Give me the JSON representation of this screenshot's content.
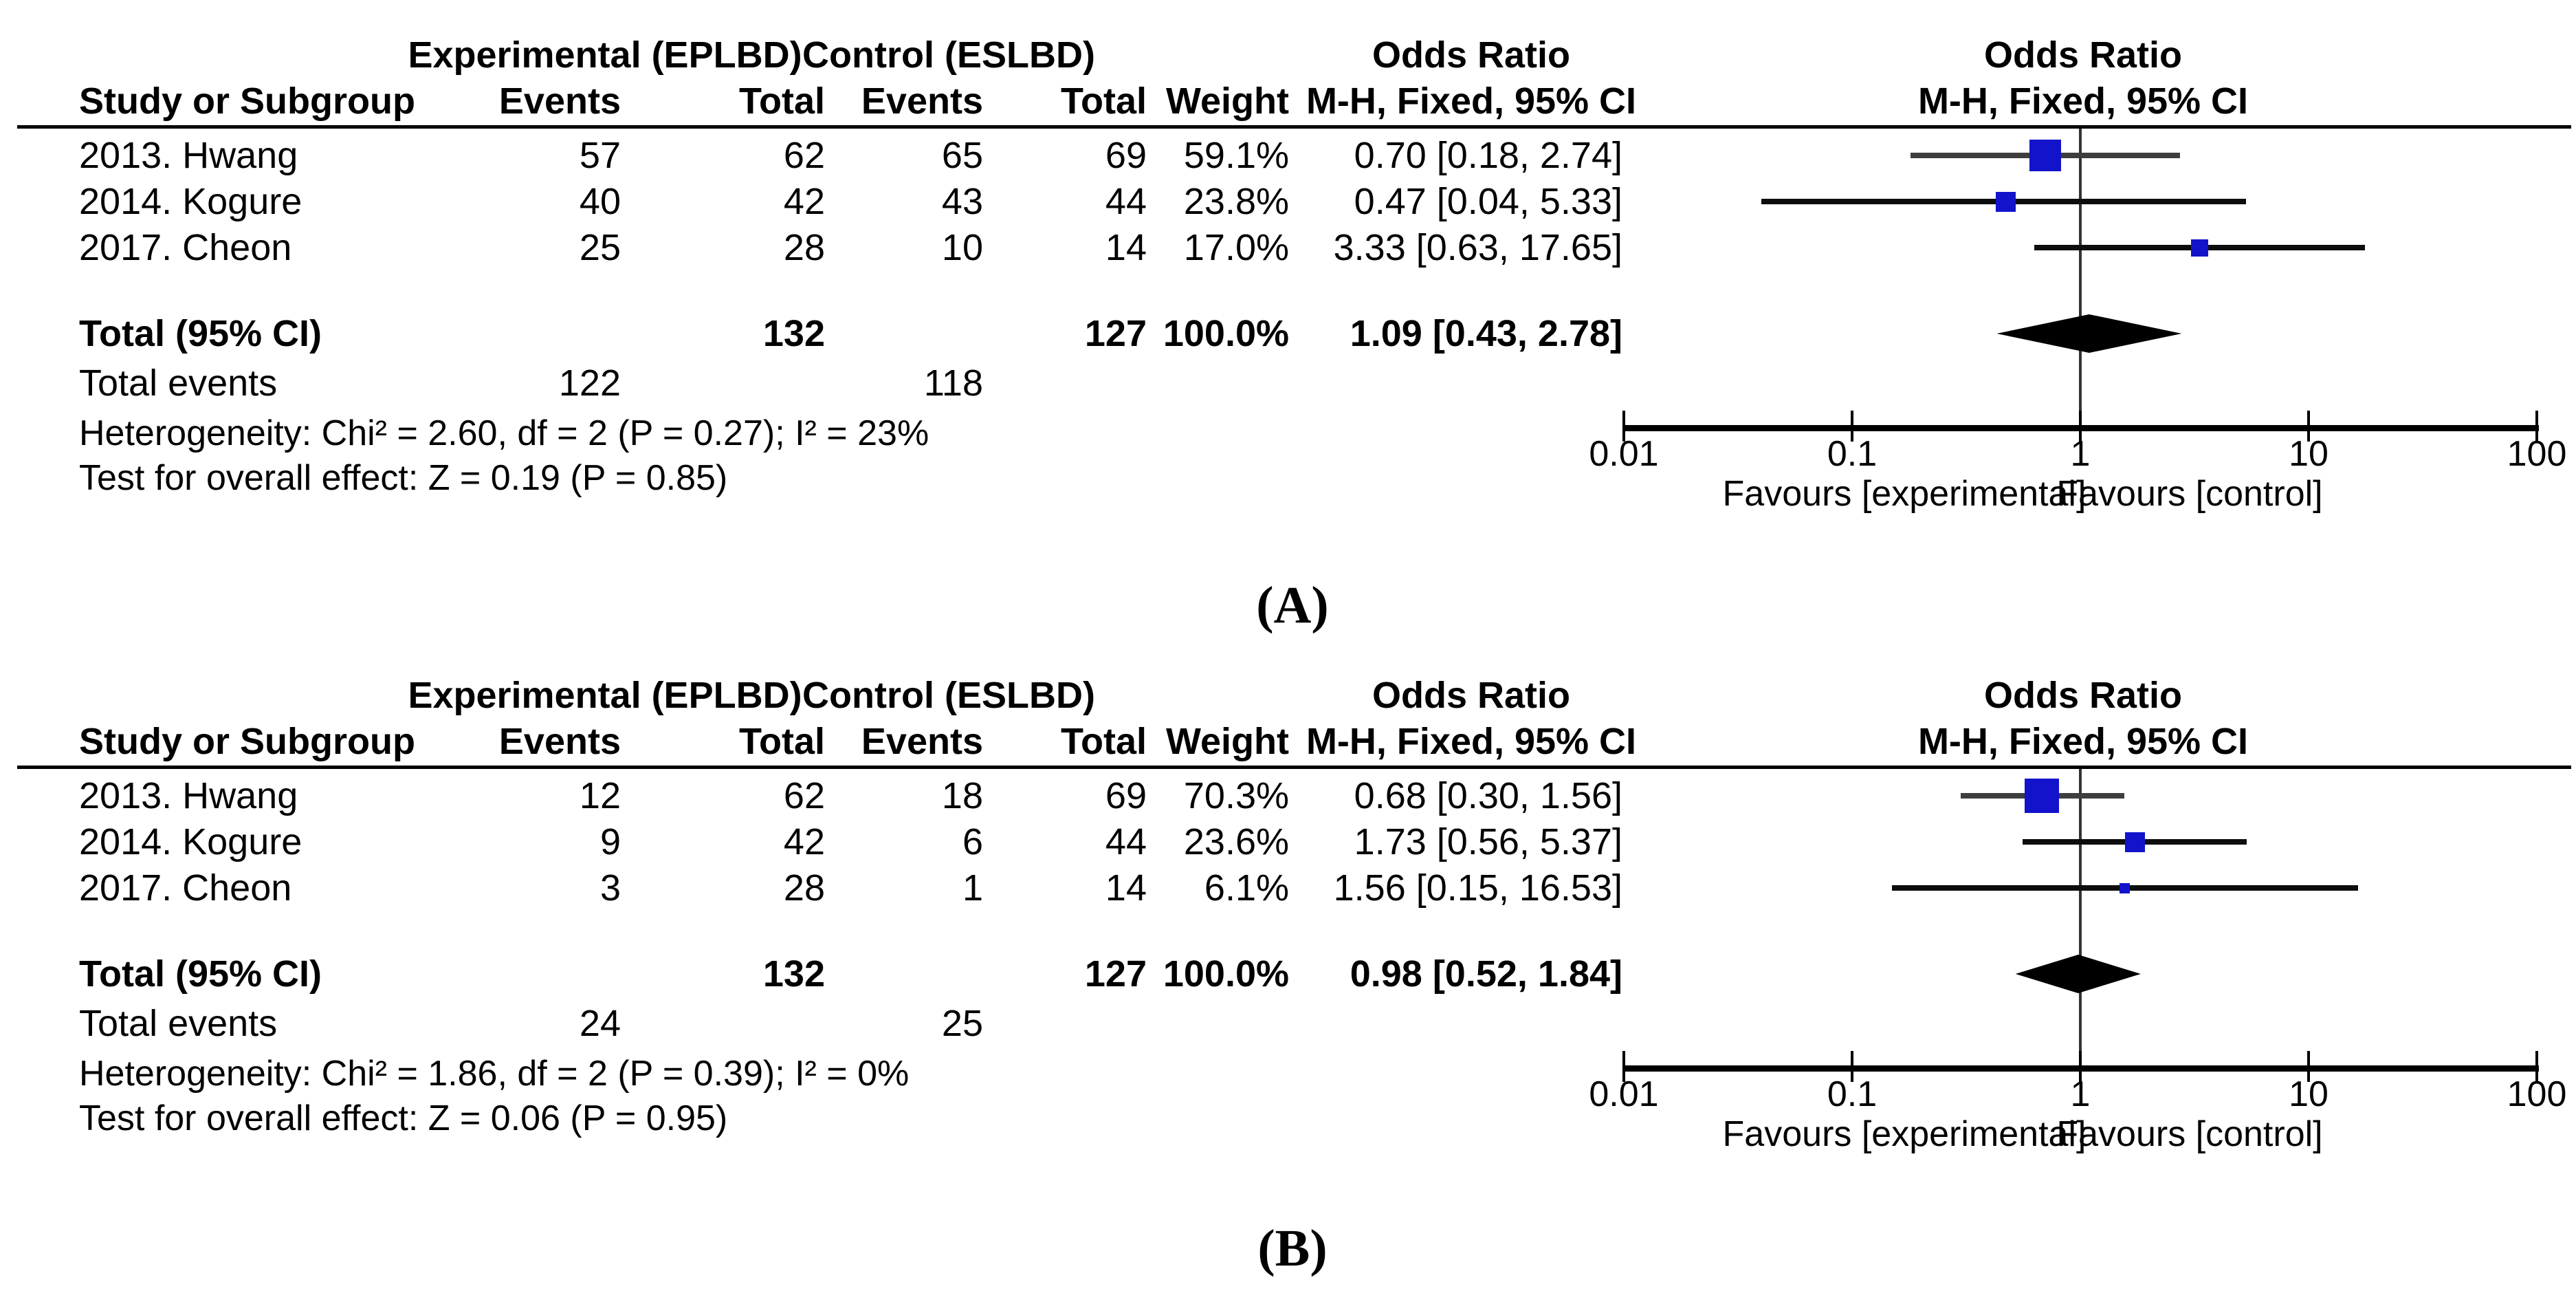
{
  "style": {
    "marker_color": "#1313cb",
    "diamond_color": "#000000",
    "axis_color": "#000000",
    "ci_default_color": "#0d0d0d"
  },
  "captions": {
    "a": "(A)",
    "b": "(B)"
  },
  "chart_data": [
    {
      "type": "forest",
      "panel_label": "(A)",
      "effect_measure": "Odds Ratio",
      "method": "M-H, Fixed, 95% CI",
      "col_headers": {
        "group_experimental": "Experimental (EPLBD)",
        "group_control": "Control (ESLBD)",
        "or_col_title": "Odds Ratio",
        "or_plot_title": "Odds Ratio",
        "study": "Study or Subgroup",
        "events": "Events",
        "total": "Total",
        "weight": "Weight",
        "method": "M-H, Fixed, 95% CI"
      },
      "studies": [
        {
          "name": "2013. Hwang",
          "exp_events": "57",
          "exp_total": "62",
          "ctrl_events": "65",
          "ctrl_total": "69",
          "weight": "59.1%",
          "weight_pct": 59.1,
          "or": 0.7,
          "ci_low": 0.18,
          "ci_high": 2.74,
          "or_text": "0.70 [0.18, 2.74]",
          "ci_color": "#3e3e3e"
        },
        {
          "name": "2014. Kogure",
          "exp_events": "40",
          "exp_total": "42",
          "ctrl_events": "43",
          "ctrl_total": "44",
          "weight": "23.8%",
          "weight_pct": 23.8,
          "or": 0.47,
          "ci_low": 0.04,
          "ci_high": 5.33,
          "or_text": "0.47 [0.04, 5.33]",
          "ci_color": "#0d0d0d"
        },
        {
          "name": "2017. Cheon",
          "exp_events": "25",
          "exp_total": "28",
          "ctrl_events": "10",
          "ctrl_total": "14",
          "weight": "17.0%",
          "weight_pct": 17.0,
          "or": 3.33,
          "ci_low": 0.63,
          "ci_high": 17.65,
          "or_text": "3.33 [0.63, 17.65]",
          "ci_color": "#0d0d0d"
        }
      ],
      "total": {
        "label": "Total (95% CI)",
        "exp_total": "132",
        "ctrl_total": "127",
        "weight": "100.0%",
        "or": 1.09,
        "ci_low": 0.43,
        "ci_high": 2.78,
        "or_text": "1.09 [0.43, 2.78]"
      },
      "total_events": {
        "label": "Total events",
        "exp": "122",
        "ctrl": "118"
      },
      "heterogeneity": "Heterogeneity: Chi² = 2.60, df = 2 (P = 0.27); I² = 23%",
      "overall_effect": "Test for overall effect: Z = 0.19 (P = 0.85)",
      "axis": {
        "scale": "log",
        "ticks": [
          0.01,
          0.1,
          1,
          10,
          100
        ],
        "tick_labels": [
          "0.01",
          "0.1",
          "1",
          "10",
          "100"
        ],
        "favours_left": "Favours [experimental]",
        "favours_right": "Favours [control]"
      }
    },
    {
      "type": "forest",
      "panel_label": "(B)",
      "effect_measure": "Odds Ratio",
      "method": "M-H, Fixed, 95% CI",
      "col_headers": {
        "group_experimental": "Experimental (EPLBD)",
        "group_control": "Control (ESLBD)",
        "or_col_title": "Odds Ratio",
        "or_plot_title": "Odds Ratio",
        "study": "Study or Subgroup",
        "events": "Events",
        "total": "Total",
        "weight": "Weight",
        "method": "M-H, Fixed, 95% CI"
      },
      "studies": [
        {
          "name": "2013. Hwang",
          "exp_events": "12",
          "exp_total": "62",
          "ctrl_events": "18",
          "ctrl_total": "69",
          "weight": "70.3%",
          "weight_pct": 70.3,
          "or": 0.68,
          "ci_low": 0.3,
          "ci_high": 1.56,
          "or_text": "0.68 [0.30, 1.56]",
          "ci_color": "#3e3e3e"
        },
        {
          "name": "2014. Kogure",
          "exp_events": "9",
          "exp_total": "42",
          "ctrl_events": "6",
          "ctrl_total": "44",
          "weight": "23.6%",
          "weight_pct": 23.6,
          "or": 1.73,
          "ci_low": 0.56,
          "ci_high": 5.37,
          "or_text": "1.73 [0.56, 5.37]",
          "ci_color": "#0d0d0d"
        },
        {
          "name": "2017. Cheon",
          "exp_events": "3",
          "exp_total": "28",
          "ctrl_events": "1",
          "ctrl_total": "14",
          "weight": "6.1%",
          "weight_pct": 6.1,
          "or": 1.56,
          "ci_low": 0.15,
          "ci_high": 16.53,
          "or_text": "1.56 [0.15, 16.53]",
          "ci_color": "#0d0d0d"
        }
      ],
      "total": {
        "label": "Total (95% CI)",
        "exp_total": "132",
        "ctrl_total": "127",
        "weight": "100.0%",
        "or": 0.98,
        "ci_low": 0.52,
        "ci_high": 1.84,
        "or_text": "0.98 [0.52, 1.84]"
      },
      "total_events": {
        "label": "Total events",
        "exp": "24",
        "ctrl": "25"
      },
      "heterogeneity": "Heterogeneity: Chi² = 1.86, df = 2 (P = 0.39); I² = 0%",
      "overall_effect": "Test for overall effect: Z = 0.06 (P = 0.95)",
      "axis": {
        "scale": "log",
        "ticks": [
          0.01,
          0.1,
          1,
          10,
          100
        ],
        "tick_labels": [
          "0.01",
          "0.1",
          "1",
          "10",
          "100"
        ],
        "favours_left": "Favours [experimental]",
        "favours_right": "Favours [control]"
      }
    }
  ]
}
